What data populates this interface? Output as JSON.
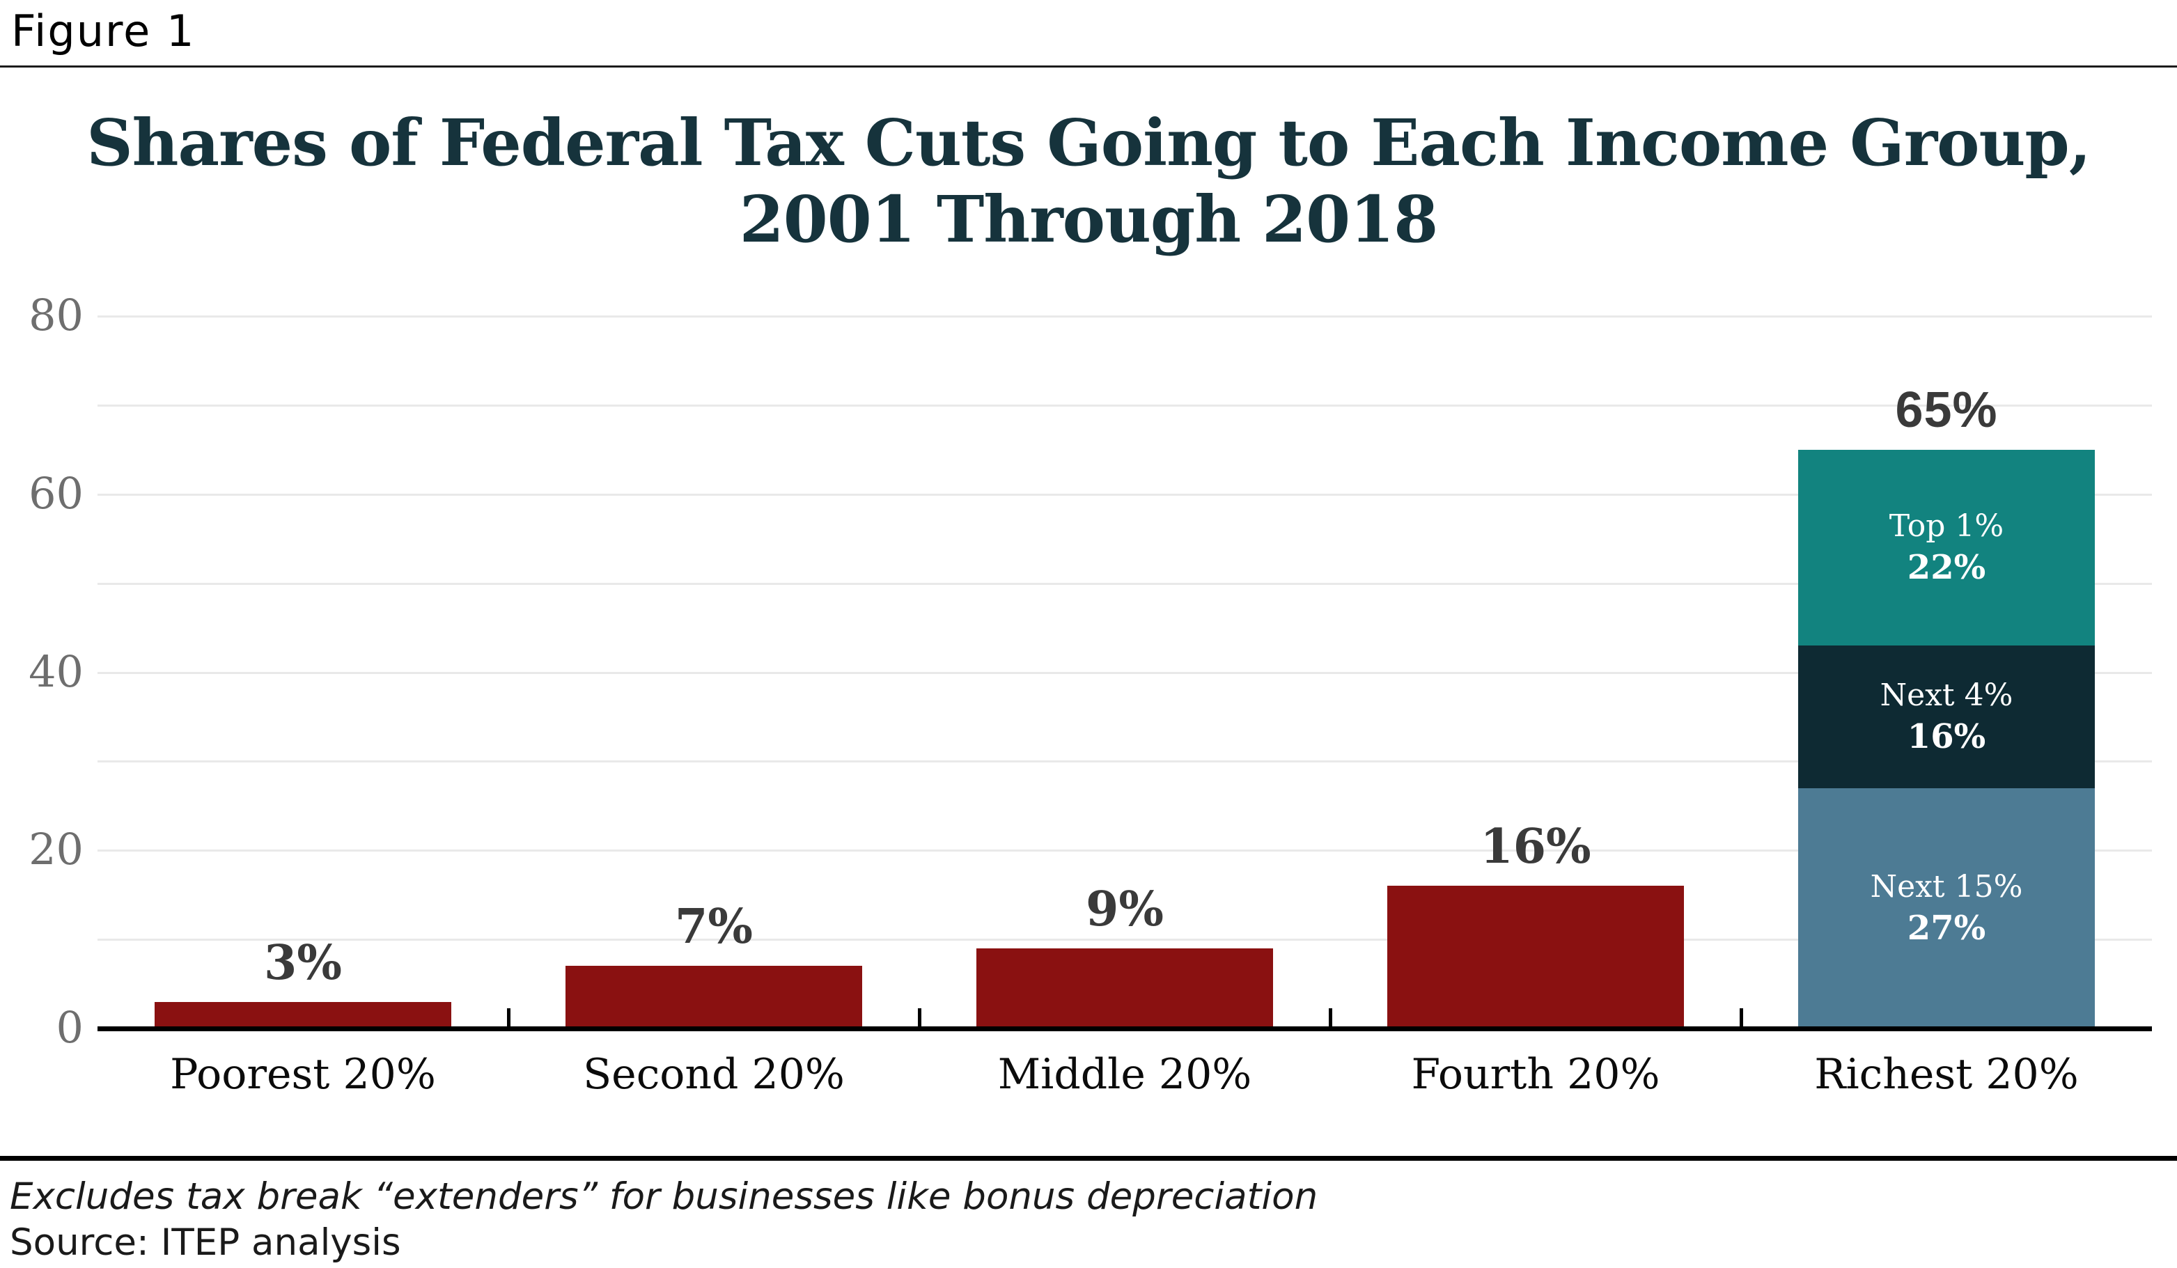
{
  "figure_label": "Figure 1",
  "title_lines": [
    "Shares of Federal Tax Cuts Going to Each Income Group,",
    "2001 Through 2018"
  ],
  "footer": {
    "note": "Excludes tax break “extenders” for businesses like bonus depreciation",
    "source": "Source: ITEP analysis"
  },
  "colors": {
    "bar_red": "#8a1111",
    "segment_steel_blue": "#4d7b94",
    "segment_dark_navy": "#0e2a33",
    "segment_teal": "#12837f",
    "title_teal": "#16333c",
    "value_label_gray": "#3a3a3a",
    "axis_label_gray": "#6e6e6e",
    "gridline_gray": "#e9e9e9"
  },
  "chart_data": {
    "type": "bar",
    "title": "Shares of Federal Tax Cuts Going to Each Income Group, 2001 Through 2018",
    "xlabel": "",
    "ylabel": "",
    "categories": [
      "Poorest 20%",
      "Second 20%",
      "Middle 20%",
      "Fourth 20%",
      "Richest 20%"
    ],
    "values": [
      3,
      7,
      9,
      16,
      65
    ],
    "ylim": [
      0,
      80
    ],
    "yticks": [
      0,
      20,
      40,
      60,
      80
    ],
    "gridline_step": 10,
    "grid": "on",
    "legend": "none",
    "bars": [
      {
        "category": "Poorest 20%",
        "value": 3,
        "label": "3%",
        "color": "#8a1111"
      },
      {
        "category": "Second 20%",
        "value": 7,
        "label": "7%",
        "color": "#8a1111"
      },
      {
        "category": "Middle 20%",
        "value": 9,
        "label": "9%",
        "color": "#8a1111"
      },
      {
        "category": "Fourth 20%",
        "value": 16,
        "label": "16%",
        "color": "#8a1111"
      },
      {
        "category": "Richest 20%",
        "value": 65,
        "label": "65%",
        "stacked": true,
        "segments": [
          {
            "name": "Next 15%",
            "pct_label": "27%",
            "value": 27,
            "color": "#4d7b94"
          },
          {
            "name": "Next 4%",
            "pct_label": "16%",
            "value": 16,
            "color": "#0e2a33"
          },
          {
            "name": "Top 1%",
            "pct_label": "22%",
            "value": 22,
            "color": "#12837f"
          }
        ]
      }
    ]
  }
}
